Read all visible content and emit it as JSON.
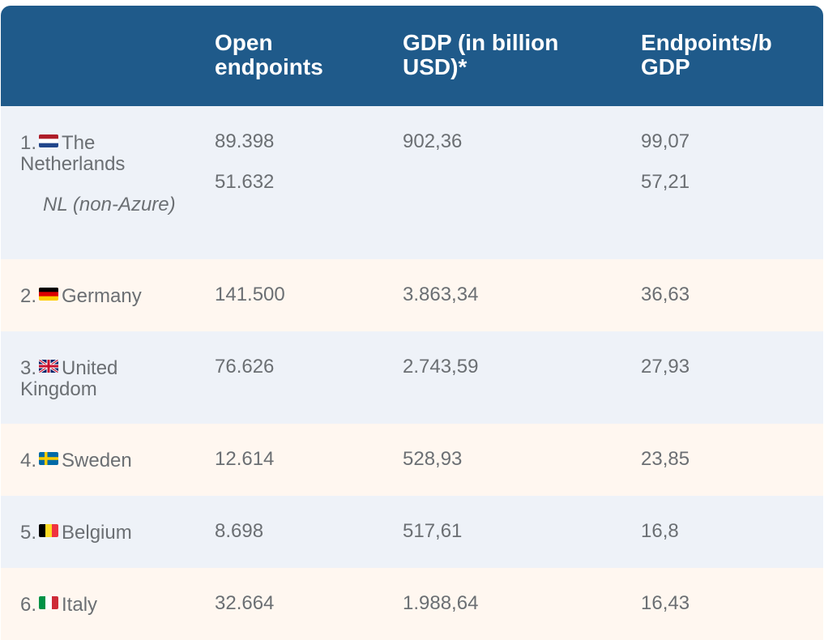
{
  "header": {
    "col_country": "",
    "col_open": "Open endpoints",
    "col_gdp": "GDP (in billion USD)*",
    "col_ratio": "Endpoints/b GDP"
  },
  "rows": [
    {
      "rank": "1.",
      "country": "The Netherlands",
      "flag_icon": "netherlands-flag-icon",
      "open": "89.398",
      "gdp": "902,36",
      "ratio": "99,07",
      "sub_label": "NL (non-Azure)",
      "sub_open": "51.632",
      "sub_ratio": "57,21"
    },
    {
      "rank": "2.",
      "country": "Germany",
      "flag_icon": "germany-flag-icon",
      "open": "141.500",
      "gdp": "3.863,34",
      "ratio": "36,63"
    },
    {
      "rank": "3.",
      "country": "United Kingdom",
      "flag_icon": "united-kingdom-flag-icon",
      "open": "76.626",
      "gdp": "2.743,59",
      "ratio": "27,93"
    },
    {
      "rank": "4.",
      "country": "Sweden",
      "flag_icon": "sweden-flag-icon",
      "open": "12.614",
      "gdp": "528,93",
      "ratio": "23,85"
    },
    {
      "rank": "5.",
      "country": "Belgium",
      "flag_icon": "belgium-flag-icon",
      "open": "8.698",
      "gdp": "517,61",
      "ratio": "16,8"
    },
    {
      "rank": "6.",
      "country": "Italy",
      "flag_icon": "italy-flag-icon",
      "open": "32.664",
      "gdp": "1.988,64",
      "ratio": "16,43"
    }
  ],
  "colors": {
    "header_bg": "#1f5a8a",
    "row_odd_bg": "#eef2f8",
    "row_even_bg": "#fff7f0",
    "text": "#6b6f73"
  }
}
